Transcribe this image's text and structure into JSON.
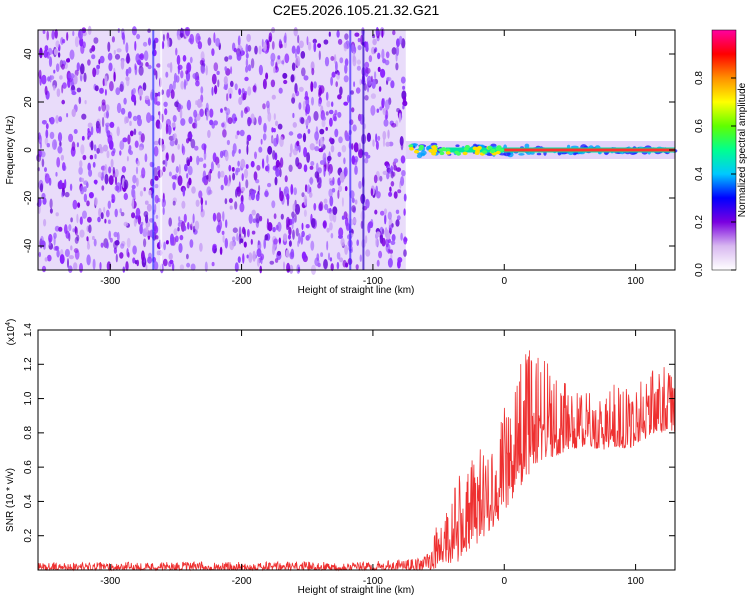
{
  "title": "C2E5.2026.105.21.32.G21",
  "chart_data": [
    {
      "type": "heatmap",
      "name": "spectrogram",
      "xlabel": "Height of straight line (km)",
      "ylabel": "Frequency (Hz)",
      "xlim": [
        -355,
        130
      ],
      "ylim": [
        -50,
        50
      ],
      "x_ticks": [
        -300,
        -200,
        -100,
        0,
        100
      ],
      "x_tick_labels": [
        "-300",
        "-200",
        "-100",
        "0",
        "100"
      ],
      "y_ticks": [
        -40,
        -20,
        0,
        20,
        40
      ],
      "y_tick_labels": [
        "-40",
        "-20",
        "0",
        "20",
        "40"
      ],
      "noise_region_x": [
        -355,
        -75
      ],
      "signal_line_frequency_hz": 0,
      "signal_region_x": [
        -75,
        130
      ],
      "colorbar": {
        "label": "Normalized spectral amplitude",
        "range": [
          0,
          1
        ],
        "ticks": [
          0.0,
          0.2,
          0.4,
          0.6,
          0.8
        ],
        "tick_labels": [
          "0.0",
          "0.2",
          "0.4",
          "0.6",
          "0.8"
        ],
        "colors": [
          "#ffffff",
          "#d8b8f0",
          "#7a00e0",
          "#0000ff",
          "#00c8ff",
          "#00ff90",
          "#60ff00",
          "#ffff00",
          "#ff9000",
          "#ff0000",
          "#ff00a0"
        ]
      }
    },
    {
      "type": "line",
      "name": "snr",
      "xlabel": "Height of straight line (km)",
      "ylabel": "SNR (10 * v/v)",
      "y_scale_label": "(x10",
      "y_scale_exponent": "4",
      "y_scale_suffix": ")",
      "xlim": [
        -355,
        130
      ],
      "ylim": [
        0,
        14000
      ],
      "x_ticks": [
        -300,
        -200,
        -100,
        0,
        100
      ],
      "x_tick_labels": [
        "-300",
        "-200",
        "-100",
        "0",
        "100"
      ],
      "y_ticks": [
        2000,
        4000,
        6000,
        8000,
        10000,
        12000,
        14000
      ],
      "y_tick_labels": [
        "0.2",
        "0.4",
        "0.6",
        "0.8",
        "1.0",
        "1.2",
        "1.4"
      ],
      "line_color": "#ee3030",
      "envelope": {
        "x": [
          -355,
          -100,
          -62,
          -55,
          -45,
          -35,
          -25,
          -15,
          -5,
          5,
          15,
          25,
          35,
          45,
          60,
          75,
          85,
          95,
          105,
          115,
          125,
          130
        ],
        "baseline": [
          0,
          0,
          0,
          50,
          200,
          500,
          1200,
          2000,
          2800,
          4000,
          5200,
          6200,
          6500,
          6800,
          7200,
          7000,
          7200,
          7000,
          7600,
          7800,
          8200,
          8000
        ],
        "peak": [
          450,
          500,
          700,
          1800,
          4000,
          5500,
          6500,
          7500,
          8500,
          10500,
          12800,
          13400,
          12500,
          11000,
          10500,
          10000,
          11000,
          10500,
          11500,
          12000,
          11800,
          11000
        ]
      }
    }
  ]
}
